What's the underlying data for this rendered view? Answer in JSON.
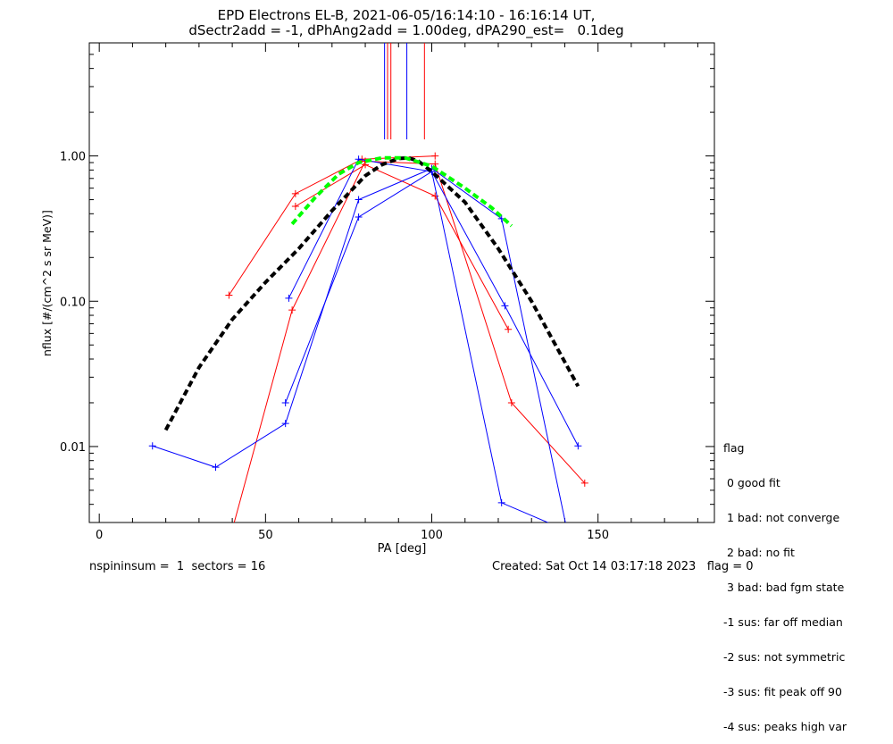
{
  "title_line1": "EPD Electrons EL-B, 2021-06-05/16:14:10 - 16:16:14 UT,",
  "title_line2": "dSectr2add = -1, dPhAng2add = 1.00deg, dPA290_est=   0.1deg",
  "footer": {
    "left": "nspininsum =  1  sectors = 16",
    "right": "Created: Sat Oct 14 03:17:18 2023   flag = 0"
  },
  "legend": {
    "title": "flag",
    "items": [
      " 0 good fit",
      " 1 bad: not converge",
      " 2 bad: no fit",
      " 3 bad: bad fgm state",
      "-1 sus: far off median",
      "-2 sus: not symmetric",
      "-3 sus: fit peak off 90",
      "-4 sus: peaks high var"
    ]
  },
  "colors": {
    "red": "#ff0000",
    "blue": "#0000ff",
    "black": "#000000",
    "green": "#00ff00"
  },
  "chart_data": {
    "type": "line",
    "xlabel": "PA [deg]",
    "ylabel": "nflux [#/(cm^2 s sr MeV)]",
    "xlim": [
      -3,
      185
    ],
    "ylim": [
      0.003,
      6.0
    ],
    "yscale": "log",
    "xticks": [
      0,
      50,
      100,
      150
    ],
    "xtick_labels": [
      "0",
      "50",
      "100",
      "150"
    ],
    "yticks": [
      0.01,
      0.1,
      1.0
    ],
    "ytick_labels": [
      "0.01",
      "0.10",
      "1.00"
    ],
    "series": [
      {
        "color": "red",
        "marker": "+",
        "points": [
          [
            39,
            0.11
          ],
          [
            59,
            0.55
          ],
          [
            79,
            0.95
          ],
          [
            101,
            1.0
          ]
        ]
      },
      {
        "color": "red",
        "marker": "+",
        "points": [
          [
            59,
            0.45
          ],
          [
            80,
            0.87
          ],
          [
            101,
            0.53
          ],
          [
            123,
            0.064
          ]
        ]
      },
      {
        "color": "red",
        "marker": "+",
        "points": [
          [
            37,
            0.0015
          ],
          [
            58,
            0.087
          ],
          [
            80,
            0.92
          ],
          [
            101,
            0.88
          ],
          [
            124,
            0.02
          ],
          [
            146,
            0.0056
          ]
        ]
      },
      {
        "color": "blue",
        "marker": "+",
        "points": [
          [
            57,
            0.105
          ],
          [
            78,
            0.95
          ],
          [
            100,
            0.78
          ],
          [
            122,
            0.093
          ],
          [
            144,
            0.0101
          ]
        ]
      },
      {
        "color": "blue",
        "marker": "+",
        "points": [
          [
            16,
            0.0101
          ],
          [
            35,
            0.0072
          ],
          [
            56,
            0.0144
          ],
          [
            78,
            0.5
          ],
          [
            100,
            0.82
          ],
          [
            121,
            0.37
          ],
          [
            143,
            0.00148
          ]
        ]
      },
      {
        "color": "blue",
        "marker": "+",
        "points": [
          [
            56,
            0.02
          ],
          [
            78,
            0.38
          ],
          [
            100,
            0.78
          ],
          [
            121,
            0.0041
          ],
          [
            143,
            0.0025
          ]
        ]
      }
    ],
    "fits": [
      {
        "color": "black",
        "dashed": true,
        "points": [
          [
            20,
            0.013
          ],
          [
            30,
            0.035
          ],
          [
            40,
            0.075
          ],
          [
            50,
            0.135
          ],
          [
            60,
            0.23
          ],
          [
            70,
            0.42
          ],
          [
            80,
            0.73
          ],
          [
            85,
            0.87
          ],
          [
            90,
            0.96
          ],
          [
            93,
            0.97
          ],
          [
            96,
            0.92
          ],
          [
            100,
            0.78
          ],
          [
            110,
            0.48
          ],
          [
            120,
            0.23
          ],
          [
            130,
            0.1
          ],
          [
            144,
            0.026
          ]
        ]
      },
      {
        "color": "green",
        "dashed": true,
        "points": [
          [
            58,
            0.34
          ],
          [
            65,
            0.52
          ],
          [
            72,
            0.75
          ],
          [
            78,
            0.9
          ],
          [
            85,
            0.97
          ],
          [
            92,
            0.97
          ],
          [
            100,
            0.85
          ],
          [
            110,
            0.6
          ],
          [
            118,
            0.44
          ],
          [
            124,
            0.33
          ]
        ]
      }
    ],
    "vertical_lines": [
      {
        "color": "red",
        "x": 86.7
      },
      {
        "color": "blue",
        "x": 85.8
      },
      {
        "color": "red",
        "x": 87.7
      },
      {
        "color": "blue",
        "x": 92.5
      },
      {
        "color": "red",
        "x": 97.8
      }
    ],
    "vertical_lines_ymin": 1.3
  }
}
